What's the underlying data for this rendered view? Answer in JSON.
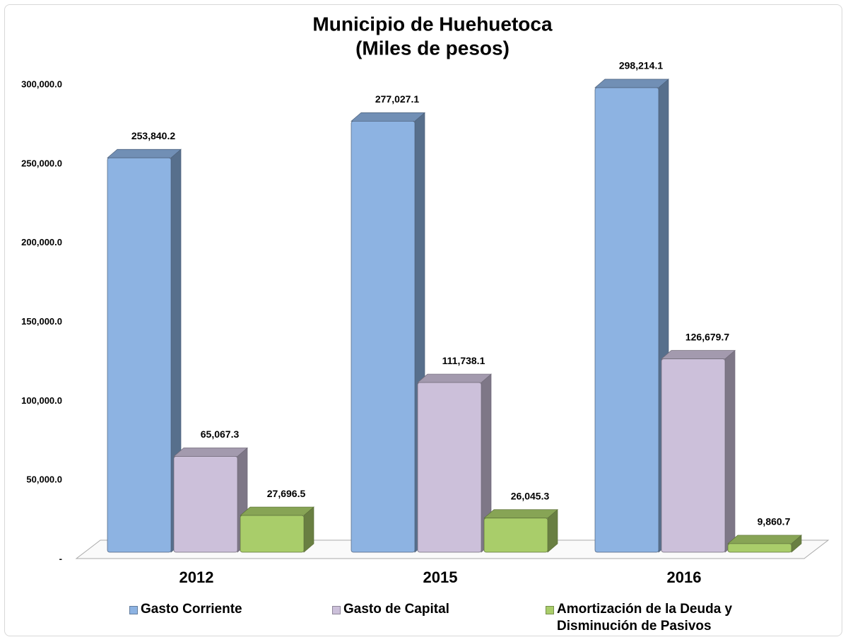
{
  "chart_data": {
    "type": "bar3d",
    "title": "Municipio de Huehuetoca",
    "subtitle": "(Miles de pesos)",
    "categories": [
      "2012",
      "2015",
      "2016"
    ],
    "series": [
      {
        "name": "Gasto Corriente",
        "color": "#8db3e2",
        "values": [
          253840.2,
          277027.1,
          298214.1
        ],
        "value_labels": [
          "253,840.2",
          "277,027.1",
          "298,214.1"
        ]
      },
      {
        "name": "Gasto de Capital",
        "color": "#ccc0da",
        "values": [
          65067.3,
          111738.1,
          126679.7
        ],
        "value_labels": [
          "65,067.3",
          "111,738.1",
          "126,679.7"
        ]
      },
      {
        "name": "Amortización de la Deuda y Disminución de Pasivos",
        "color": "#a9cd6a",
        "values": [
          27696.5,
          26045.3,
          9860.7
        ],
        "value_labels": [
          "27,696.5",
          "26,045.3",
          "9,860.7"
        ]
      }
    ],
    "ylim": [
      0,
      300000
    ],
    "yticks": [
      {
        "value": 0,
        "label": "-"
      },
      {
        "value": 50000,
        "label": "50,000.0"
      },
      {
        "value": 100000,
        "label": "100,000.0"
      },
      {
        "value": 150000,
        "label": "150,000.0"
      },
      {
        "value": 200000,
        "label": "200,000.0"
      },
      {
        "value": 250000,
        "label": "250,000.0"
      },
      {
        "value": 300000,
        "label": "300,000.0"
      }
    ],
    "grid": false
  }
}
